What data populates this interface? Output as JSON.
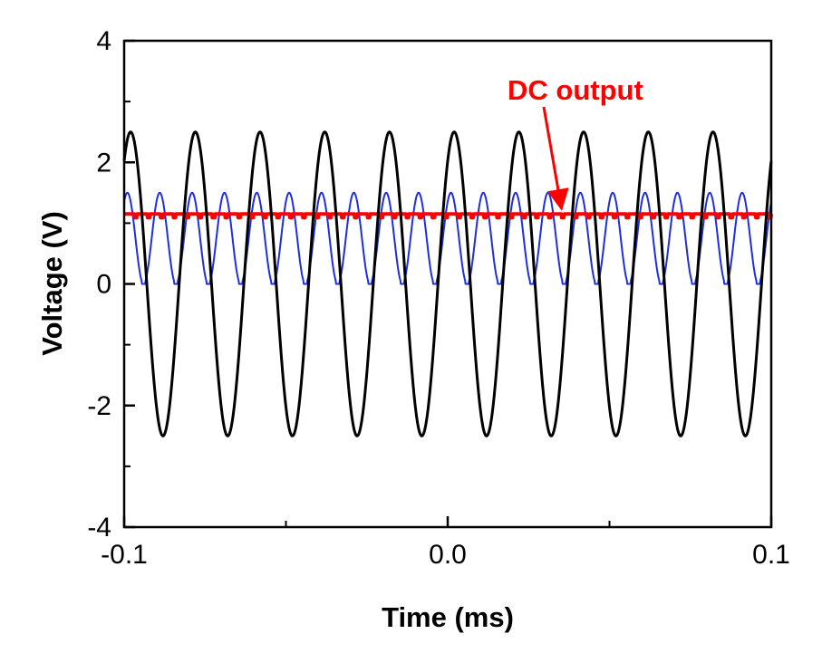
{
  "chart_data": {
    "type": "line",
    "title": "",
    "xlabel": "Time (ms)",
    "ylabel": "Voltage (V)",
    "xlim": [
      -0.1,
      0.1
    ],
    "ylim": [
      -4,
      4
    ],
    "x_ticks": [
      -0.1,
      0.0,
      0.1
    ],
    "x_tick_labels": [
      "-0.1",
      "0.0",
      "0.1"
    ],
    "y_ticks": [
      -4,
      -2,
      0,
      2,
      4
    ],
    "y_tick_labels": [
      "-4",
      "-2",
      "0",
      "2",
      "4"
    ],
    "grid": false,
    "legend": "none",
    "series": [
      {
        "color": "#000000",
        "waveform": "sine",
        "amplitude": 2.5,
        "offset": 0.0,
        "period_ms": 0.02,
        "peak_times_ms": [
          -0.098,
          -0.078,
          -0.058,
          -0.038,
          -0.018,
          0.002,
          0.022,
          0.042,
          0.062,
          0.082
        ]
      },
      {
        "color": "#1f2fe0",
        "waveform": "rectified",
        "max": 1.5,
        "min": 0.0,
        "period_ms": 0.01,
        "zero_times_ms": [
          -0.094,
          -0.074,
          -0.054,
          -0.034,
          -0.014,
          0.006,
          0.026,
          0.046,
          0.066,
          0.086
        ]
      },
      {
        "color": "#ff0000",
        "waveform": "dc",
        "value": 1.15,
        "ripple": 0.06
      }
    ],
    "annotations": [
      {
        "text": "DC output",
        "color": "#ff0000",
        "arrow_to": [
          0.035,
          1.2
        ]
      }
    ]
  }
}
